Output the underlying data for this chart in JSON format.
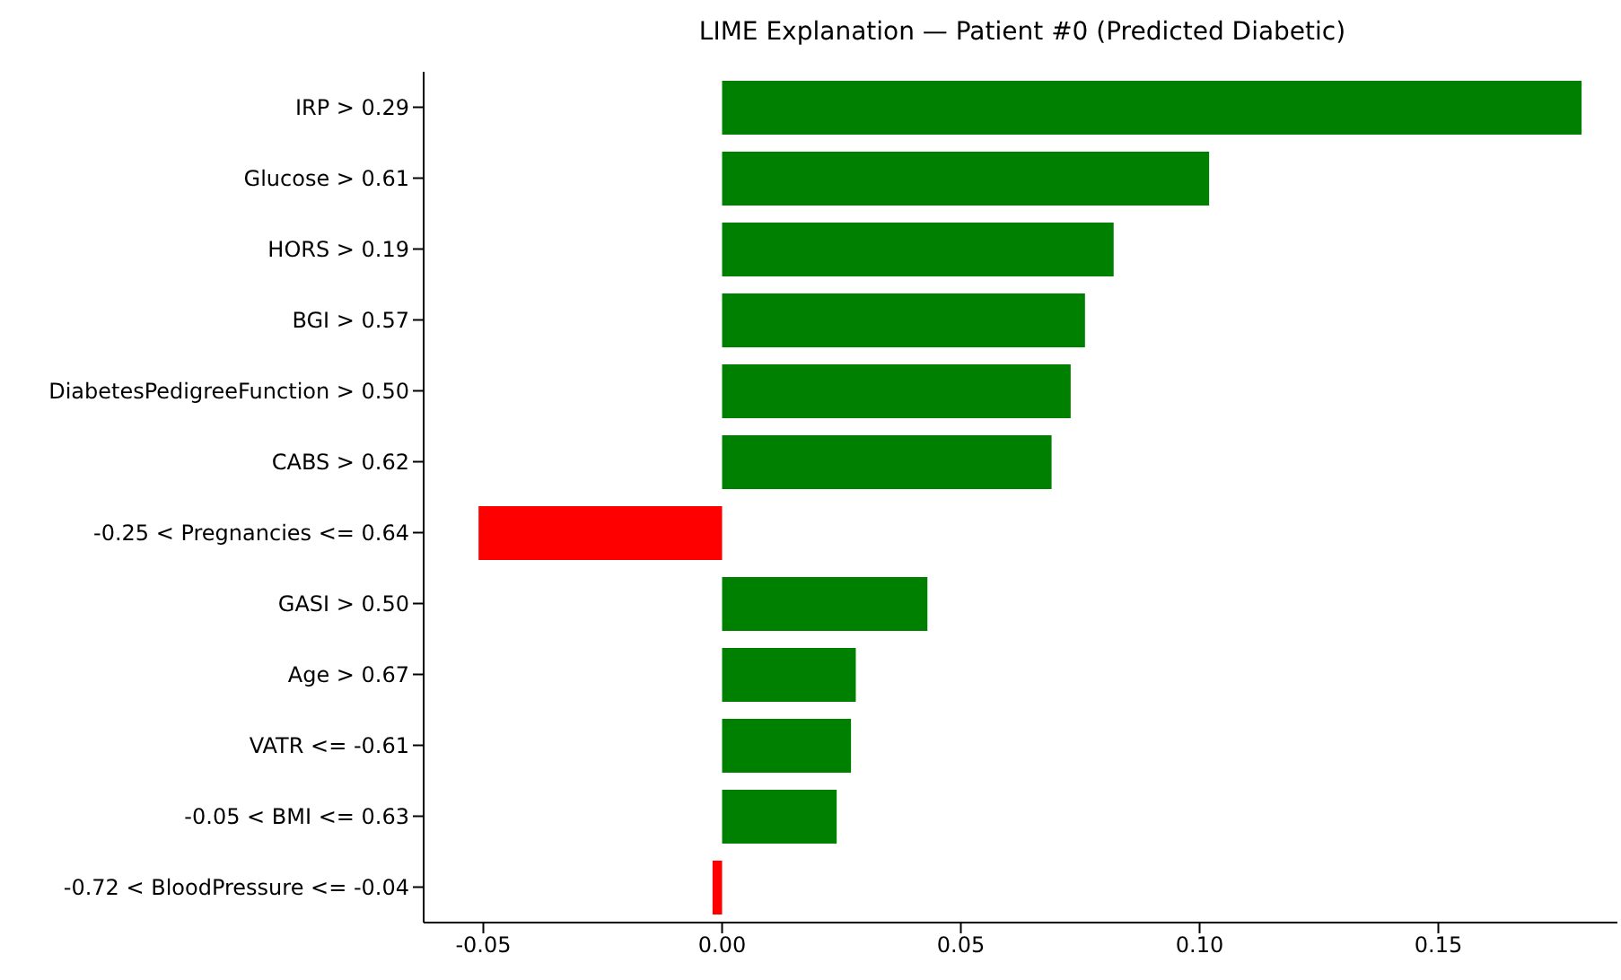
{
  "chart_data": {
    "type": "bar",
    "orientation": "horizontal",
    "title": "LIME Explanation — Patient #0 (Predicted Diabetic)",
    "categories": [
      "IRP > 0.29",
      "Glucose > 0.61",
      "HORS > 0.19",
      "BGI > 0.57",
      "DiabetesPedigreeFunction > 0.50",
      "CABS > 0.62",
      "-0.25 < Pregnancies <= 0.64",
      "GASI > 0.50",
      "Age > 0.67",
      "VATR <= -0.61",
      "-0.05 < BMI <= 0.63",
      "-0.72 < BloodPressure <= -0.04"
    ],
    "values": [
      0.18,
      0.102,
      0.082,
      0.076,
      0.073,
      0.069,
      -0.051,
      0.043,
      0.028,
      0.027,
      0.024,
      -0.002
    ],
    "colors": [
      "#008000",
      "#008000",
      "#008000",
      "#008000",
      "#008000",
      "#008000",
      "#ff0000",
      "#008000",
      "#008000",
      "#008000",
      "#008000",
      "#ff0000"
    ],
    "xlim": [
      -0.0625,
      0.1875
    ],
    "xticks": [
      {
        "value": -0.05,
        "label": "-0.05"
      },
      {
        "value": 0,
        "label": "0.00"
      },
      {
        "value": 0.05,
        "label": "0.05"
      },
      {
        "value": 0.1,
        "label": "0.10"
      },
      {
        "value": 0.15,
        "label": "0.15"
      }
    ],
    "grid": false,
    "legend": false
  }
}
